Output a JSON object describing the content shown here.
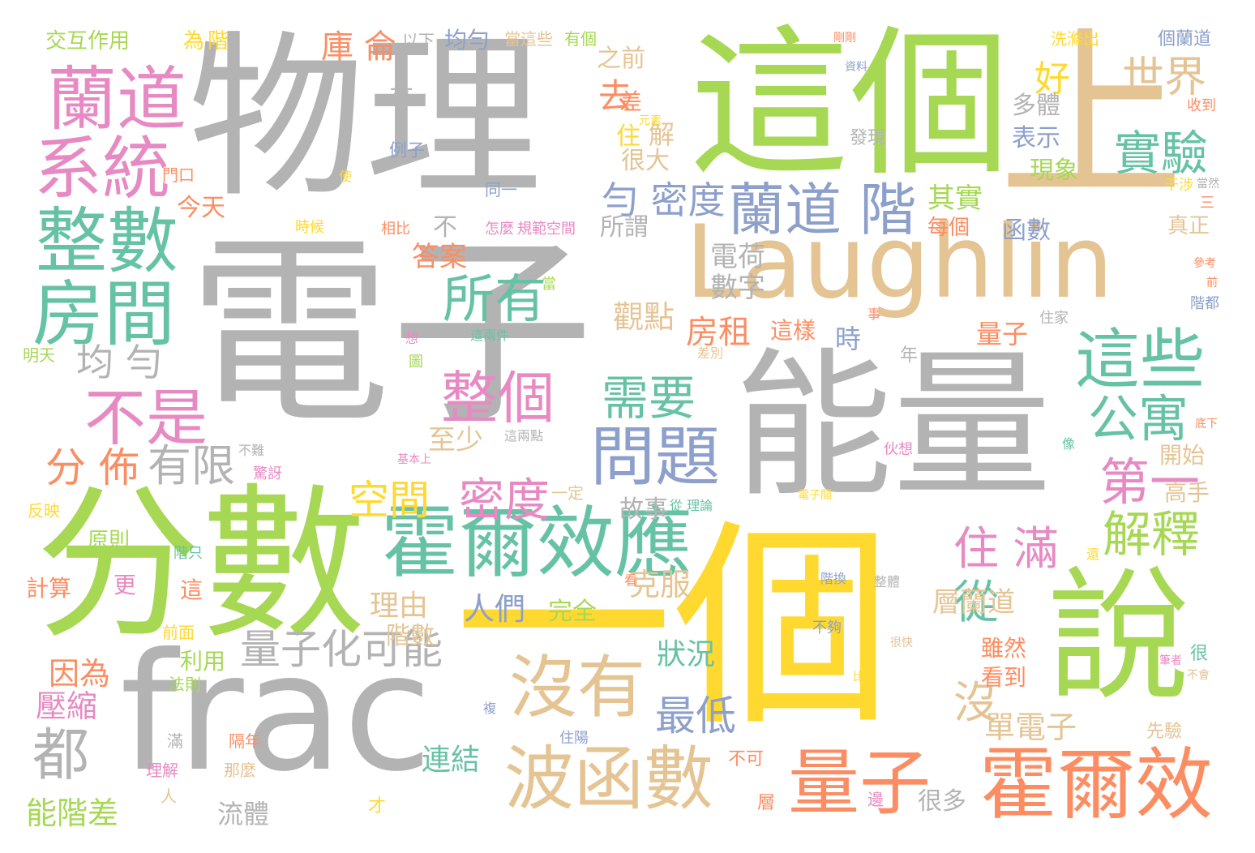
{
  "palette": {
    "gray": "#b3b3b3",
    "green": "#a6d854",
    "yellow": "#ffd92f",
    "tan": "#e5c494",
    "teal": "#66c2a5",
    "orange": "#fc8d62",
    "pink": "#e78ac3",
    "blue": "#8da0cb"
  },
  "words": [
    {
      "text": "電子",
      "color": "#b3b3b3"
    },
    {
      "text": "物理",
      "color": "#b3b3b3"
    },
    {
      "text": "這個",
      "color": "#a6d854"
    },
    {
      "text": "上",
      "color": "#e5c494"
    },
    {
      "text": "Laughlin",
      "color": "#e5c494"
    },
    {
      "text": "能量",
      "color": "#b3b3b3"
    },
    {
      "text": "分數",
      "color": "#a6d854"
    },
    {
      "text": "frac",
      "color": "#b3b3b3"
    },
    {
      "text": "一個",
      "color": "#ffd92f"
    },
    {
      "text": "說",
      "color": "#a6d854"
    },
    {
      "text": "霍爾效應",
      "color": "#66c2a5"
    },
    {
      "text": "蘭道",
      "color": "#e78ac3"
    },
    {
      "text": "系統",
      "color": "#e78ac3"
    },
    {
      "text": "整數",
      "color": "#66c2a5"
    },
    {
      "text": "房間",
      "color": "#66c2a5"
    },
    {
      "text": "蘭道 階",
      "color": "#8da0cb"
    },
    {
      "text": "這些",
      "color": "#66c2a5"
    },
    {
      "text": "沒有",
      "color": "#e5c494"
    },
    {
      "text": "波函數",
      "color": "#e5c494"
    },
    {
      "text": "量子",
      "color": "#fc8d62"
    },
    {
      "text": "霍爾效",
      "color": "#fc8d62"
    },
    {
      "text": "問題",
      "color": "#8da0cb"
    },
    {
      "text": "整個",
      "color": "#e78ac3"
    },
    {
      "text": "不是",
      "color": "#e78ac3"
    },
    {
      "text": "所有",
      "color": "#66c2a5"
    },
    {
      "text": "實驗",
      "color": "#66c2a5"
    },
    {
      "text": "世界",
      "color": "#e5c494"
    },
    {
      "text": "需要",
      "color": "#66c2a5"
    },
    {
      "text": "公寓",
      "color": "#66c2a5"
    },
    {
      "text": "第一",
      "color": "#e78ac3"
    },
    {
      "text": "解釋",
      "color": "#a6d854"
    },
    {
      "text": "住 滿",
      "color": "#e78ac3"
    },
    {
      "text": "量子化可能",
      "color": "#b3b3b3"
    },
    {
      "text": "空間",
      "color": "#ffd92f"
    },
    {
      "text": "密度",
      "color": "#e78ac3"
    },
    {
      "text": "有限",
      "color": "#b3b3b3"
    },
    {
      "text": "分 佈",
      "color": "#fc8d62"
    },
    {
      "text": "均 勻",
      "color": "#b3b3b3"
    },
    {
      "text": "都",
      "color": "#b3b3b3"
    },
    {
      "text": "從",
      "color": "#66c2a5"
    },
    {
      "text": "沒",
      "color": "#e5c494"
    },
    {
      "text": "最低",
      "color": "#8da0cb"
    },
    {
      "text": "勻 密度",
      "color": "#8da0cb"
    },
    {
      "text": "庫 侖",
      "color": "#fc8d62"
    },
    {
      "text": "好",
      "color": "#ffd92f"
    },
    {
      "text": "去",
      "color": "#fc8d62"
    },
    {
      "text": "其實",
      "color": "#a6d854"
    },
    {
      "text": "房租",
      "color": "#fc8d62"
    },
    {
      "text": "觀點",
      "color": "#e5c494"
    },
    {
      "text": "電荷",
      "color": "#b3b3b3"
    },
    {
      "text": "數字",
      "color": "#b3b3b3"
    },
    {
      "text": "答案",
      "color": "#fc8d62"
    },
    {
      "text": "至少",
      "color": "#e5c494"
    },
    {
      "text": "連結",
      "color": "#66c2a5"
    },
    {
      "text": "人們",
      "color": "#8da0cb"
    },
    {
      "text": "理由",
      "color": "#e5c494"
    },
    {
      "text": "克服",
      "color": "#e5c494"
    },
    {
      "text": "狀況",
      "color": "#66c2a5"
    },
    {
      "text": "故事",
      "color": "#b3b3b3"
    },
    {
      "text": "階數",
      "color": "#e5c494"
    },
    {
      "text": "完全",
      "color": "#a6d854"
    },
    {
      "text": "單電子",
      "color": "#e5c494"
    },
    {
      "text": "層蘭道",
      "color": "#e5c494"
    },
    {
      "text": "因為",
      "color": "#fc8d62"
    },
    {
      "text": "壓縮",
      "color": "#e78ac3"
    },
    {
      "text": "能階差",
      "color": "#a6d854"
    },
    {
      "text": "流體",
      "color": "#b3b3b3"
    },
    {
      "text": "很多",
      "color": "#b3b3b3"
    },
    {
      "text": "交互作用",
      "color": "#a6d854"
    },
    {
      "text": "均勻",
      "color": "#8da0cb"
    },
    {
      "text": "個蘭道",
      "color": "#8da0cb"
    },
    {
      "text": "多體",
      "color": "#b3b3b3"
    },
    {
      "text": "表示",
      "color": "#8da0cb"
    },
    {
      "text": "現象",
      "color": "#a6d854"
    },
    {
      "text": "函數",
      "color": "#8da0cb"
    },
    {
      "text": "每個",
      "color": "#fc8d62"
    },
    {
      "text": "所謂",
      "color": "#b3b3b3"
    },
    {
      "text": "今天",
      "color": "#fc8d62"
    },
    {
      "text": "很大",
      "color": "#e5c494"
    },
    {
      "text": "之前",
      "color": "#e5c494"
    },
    {
      "text": "解",
      "color": "#e5c494"
    },
    {
      "text": "差",
      "color": "#fc8d62"
    },
    {
      "text": "住",
      "color": "#ffd92f"
    },
    {
      "text": "來",
      "color": "#b3b3b3"
    },
    {
      "text": "不",
      "color": "#b3b3b3"
    },
    {
      "text": "時",
      "color": "#8da0cb"
    },
    {
      "text": "這樣",
      "color": "#fc8d62"
    },
    {
      "text": "量子",
      "color": "#fc8d62"
    },
    {
      "text": "開始",
      "color": "#e5c494"
    },
    {
      "text": "高手",
      "color": "#e5c494"
    },
    {
      "text": "真正",
      "color": "#e5c494"
    },
    {
      "text": "雖然",
      "color": "#fc8d62"
    },
    {
      "text": "看到",
      "color": "#fc8d62"
    },
    {
      "text": "利用",
      "color": "#a6d854"
    },
    {
      "text": "計算",
      "color": "#fc8d62"
    },
    {
      "text": "原則",
      "color": "#a6d854"
    },
    {
      "text": "更",
      "color": "#e78ac3"
    },
    {
      "text": "這",
      "color": "#fc8d62"
    },
    {
      "text": "年",
      "color": "#b3b3b3"
    },
    {
      "text": "為",
      "color": "#ffd92f"
    },
    {
      "text": "階",
      "color": "#ffd92f"
    },
    {
      "text": "以下",
      "color": "#b3b3b3"
    },
    {
      "text": "有個",
      "color": "#a6d854"
    },
    {
      "text": "當這些",
      "color": "#e5c494"
    },
    {
      "text": "洗滌出",
      "color": "#ffd92f"
    },
    {
      "text": "收到",
      "color": "#fc8d62"
    },
    {
      "text": "發現",
      "color": "#b3b3b3"
    },
    {
      "text": "例子",
      "color": "#8da0cb"
    },
    {
      "text": "同一",
      "color": "#8da0cb"
    },
    {
      "text": "門口",
      "color": "#fc8d62"
    },
    {
      "text": "明天",
      "color": "#a6d854"
    },
    {
      "text": "反映",
      "color": "#ffd92f"
    },
    {
      "text": "前面",
      "color": "#ffd92f"
    },
    {
      "text": "法則",
      "color": "#a6d854"
    },
    {
      "text": "理解",
      "color": "#e78ac3"
    },
    {
      "text": "那麼",
      "color": "#e5c494"
    },
    {
      "text": "隔年",
      "color": "#fc8d62"
    },
    {
      "text": "滿",
      "color": "#b3b3b3"
    },
    {
      "text": "人",
      "color": "#e5c494"
    },
    {
      "text": "才",
      "color": "#ffd92f"
    },
    {
      "text": "層",
      "color": "#fc8d62"
    },
    {
      "text": "不可",
      "color": "#fc8d62"
    },
    {
      "text": "一定",
      "color": "#e5c494"
    },
    {
      "text": "伙想",
      "color": "#e78ac3"
    },
    {
      "text": "先驗",
      "color": "#e5c494"
    },
    {
      "text": "很",
      "color": "#66c2a5"
    },
    {
      "text": "三",
      "color": "#fc8d62"
    },
    {
      "text": "干涉",
      "color": "#ffd92f"
    },
    {
      "text": "怎麼",
      "color": "#e78ac3"
    },
    {
      "text": "規範空間",
      "color": "#e78ac3"
    },
    {
      "text": "相比",
      "color": "#fc8d62"
    },
    {
      "text": "時候",
      "color": "#ffd92f"
    },
    {
      "text": "住家",
      "color": "#b3b3b3"
    },
    {
      "text": "當",
      "color": "#a6d854"
    },
    {
      "text": "圖",
      "color": "#a6d854"
    },
    {
      "text": "住陽",
      "color": "#8da0cb"
    },
    {
      "text": "不夠",
      "color": "#8da0cb"
    },
    {
      "text": "階只",
      "color": "#66c2a5"
    },
    {
      "text": "階都",
      "color": "#8da0cb"
    },
    {
      "text": "比例",
      "color": "#ffd92f"
    },
    {
      "text": "很快",
      "color": "#e5c494"
    },
    {
      "text": "這兩件",
      "color": "#66c2a5"
    },
    {
      "text": "這兩點",
      "color": "#b3b3b3"
    },
    {
      "text": "基本上",
      "color": "#e78ac3"
    },
    {
      "text": "驚訝",
      "color": "#e78ac3"
    },
    {
      "text": "不難",
      "color": "#b3b3b3"
    },
    {
      "text": "從 理論",
      "color": "#66c2a5"
    },
    {
      "text": "電子間",
      "color": "#ffd92f"
    },
    {
      "text": "整體",
      "color": "#b3b3b3"
    },
    {
      "text": "階換",
      "color": "#8da0cb"
    },
    {
      "text": "看",
      "color": "#fc8d62"
    },
    {
      "text": "複",
      "color": "#8da0cb"
    },
    {
      "text": "元素",
      "color": "#ffd92f"
    },
    {
      "text": "使",
      "color": "#ffd92f"
    },
    {
      "text": "事",
      "color": "#fc8d62"
    },
    {
      "text": "想",
      "color": "#e78ac3"
    },
    {
      "text": "像",
      "color": "#66c2a5"
    },
    {
      "text": "還",
      "color": "#ffd92f"
    },
    {
      "text": "差別",
      "color": "#e5c494"
    },
    {
      "text": "資料",
      "color": "#8da0cb"
    },
    {
      "text": "剛剛",
      "color": "#fc8d62"
    },
    {
      "text": "參考",
      "color": "#fc8d62"
    },
    {
      "text": "前",
      "color": "#fc8d62"
    },
    {
      "text": "當然",
      "color": "#b3b3b3"
    },
    {
      "text": "底下",
      "color": "#fc8d62"
    },
    {
      "text": "筆者",
      "color": "#e78ac3"
    },
    {
      "text": "邊",
      "color": "#e78ac3"
    },
    {
      "text": "不會",
      "color": "#e5c494"
    }
  ]
}
